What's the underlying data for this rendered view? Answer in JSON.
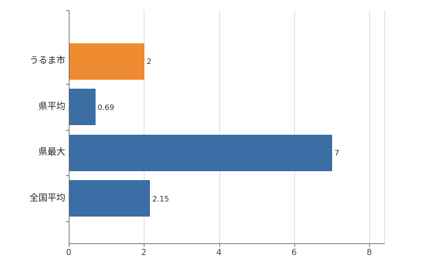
{
  "chart_data": {
    "type": "bar",
    "orientation": "horizontal",
    "title": "",
    "xlabel": "",
    "ylabel": "",
    "categories": [
      "うるま市",
      "県平均",
      "県最大",
      "全国平均"
    ],
    "values": [
      2,
      0.69,
      7,
      2.15
    ],
    "value_labels": [
      "2",
      "0.69",
      "7",
      "2.15"
    ],
    "series": [
      {
        "category": "うるま市",
        "value": 2,
        "label": "2",
        "color": "#ef8b31"
      },
      {
        "category": "県平均",
        "value": 0.69,
        "label": "0.69",
        "color": "#3a6ea5"
      },
      {
        "category": "県最大",
        "value": 7,
        "label": "7",
        "color": "#3a6ea5"
      },
      {
        "category": "全国平均",
        "value": 2.15,
        "label": "2.15",
        "color": "#3a6ea5"
      }
    ],
    "xlim": [
      0,
      8
    ],
    "x_ticks": [
      0,
      2,
      4,
      6,
      8
    ],
    "x_tick_labels": [
      "0",
      "2",
      "4",
      "6",
      "8"
    ],
    "grid": true,
    "legend": false,
    "colors": {
      "bar_default": "#3a6ea5",
      "bar_highlight": "#ef8b31",
      "axis": "#666666",
      "grid": "#d9d9d9",
      "label": "#333333"
    }
  }
}
